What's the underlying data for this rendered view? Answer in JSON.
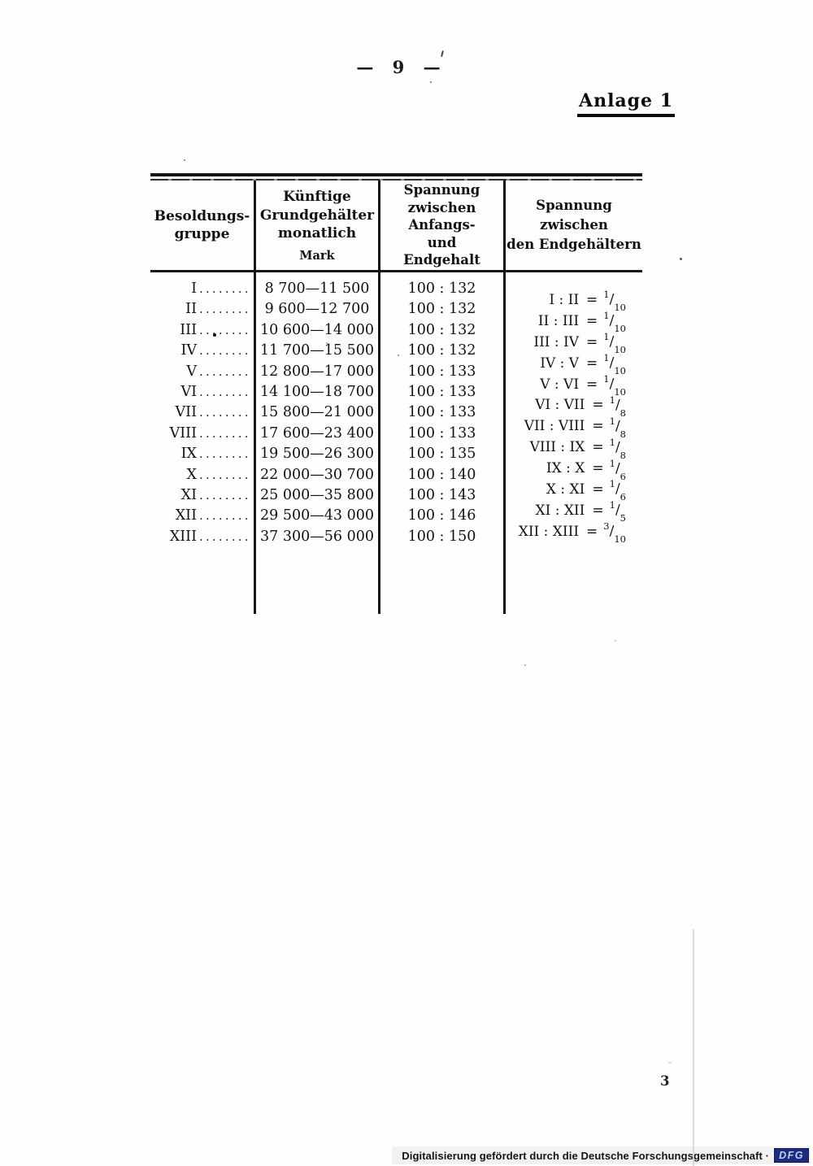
{
  "page": {
    "page_number_top": "— 9 —",
    "annex_label": "Anlage 1",
    "page_number_bottom": "3"
  },
  "table": {
    "headers": {
      "col1": "Besoldungs-\ngruppe",
      "col2": "Künftige\nGrundgehälter\nmonatlich",
      "col2_sub": "Mark",
      "col3": "Spannung\nzwischen Anfangs-\nund\nEndgehalt",
      "col4": "Spannung\nzwischen\nden Endgehältern"
    },
    "leader": ".........",
    "eq": "=",
    "frac_slash": "/",
    "rows": [
      {
        "group": "I",
        "salary": "8 700—11 500",
        "span": "100 : 132"
      },
      {
        "group": "II",
        "salary": "9 600—12 700",
        "span": "100 : 132"
      },
      {
        "group": "III",
        "salary": "10 600—14 000",
        "span": "100 : 132"
      },
      {
        "group": "IV",
        "salary": "11 700—15 500",
        "span": "100 : 132"
      },
      {
        "group": "V",
        "salary": "12 800—17 000",
        "span": "100 : 133"
      },
      {
        "group": "VI",
        "salary": "14 100—18 700",
        "span": "100 : 133"
      },
      {
        "group": "VII",
        "salary": "15 800—21 000",
        "span": "100 : 133"
      },
      {
        "group": "VIII",
        "salary": "17 600—23 400",
        "span": "100 : 133"
      },
      {
        "group": "IX",
        "salary": "19 500—26 300",
        "span": "100 : 135"
      },
      {
        "group": "X",
        "salary": "22 000—30 700",
        "span": "100 : 140"
      },
      {
        "group": "XI",
        "salary": "25 000—35 800",
        "span": "100 : 143"
      },
      {
        "group": "XII",
        "salary": "29 500—43 000",
        "span": "100 : 146"
      },
      {
        "group": "XIII",
        "salary": "37 300—56 000",
        "span": "100 : 150"
      }
    ],
    "ratios": [
      {
        "pair": "I : II",
        "num": "1",
        "den": "10"
      },
      {
        "pair": "II : III",
        "num": "1",
        "den": "10"
      },
      {
        "pair": "III : IV",
        "num": "1",
        "den": "10"
      },
      {
        "pair": "IV : V",
        "num": "1",
        "den": "10"
      },
      {
        "pair": "V : VI",
        "num": "1",
        "den": "10"
      },
      {
        "pair": "VI : VII",
        "num": "1",
        "den": "8"
      },
      {
        "pair": "VII : VIII",
        "num": "1",
        "den": "8"
      },
      {
        "pair": "VIII : IX",
        "num": "1",
        "den": "8"
      },
      {
        "pair": "IX : X",
        "num": "1",
        "den": "6"
      },
      {
        "pair": "X : XI",
        "num": "1",
        "den": "6"
      },
      {
        "pair": "XI : XII",
        "num": "1",
        "den": "5"
      },
      {
        "pair": "XII : XIII",
        "num": "3",
        "den": "10"
      }
    ]
  },
  "footer": {
    "text": "Digitalisierung gefördert durch die Deutsche Forschungsgemeinschaft ·",
    "logo": "DFG",
    "logo_bg": "#1b2c7e"
  }
}
